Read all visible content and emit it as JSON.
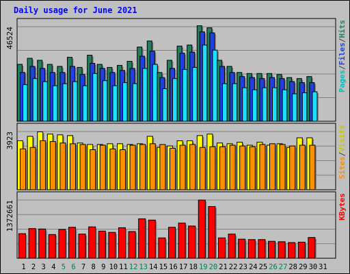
{
  "chart_data": {
    "type": "bar",
    "title": "Daily usage for June 2021",
    "days": [
      "1",
      "2",
      "3",
      "4",
      "5",
      "6",
      "7",
      "8",
      "9",
      "10",
      "11",
      "12",
      "13",
      "14",
      "15",
      "16",
      "17",
      "18",
      "19",
      "20",
      "21",
      "22",
      "23",
      "24",
      "25",
      "26",
      "27",
      "28",
      "29",
      "30",
      "31"
    ],
    "weekend_days": [
      "5",
      "6",
      "12",
      "13",
      "19",
      "20",
      "26",
      "27"
    ],
    "top_panel": {
      "ymax_label": "46524",
      "ymax": 46524,
      "legend": [
        "Pages",
        "/",
        "Files",
        "/",
        "Hits"
      ],
      "series": [
        {
          "name": "Hits",
          "color": "#1f7f5f",
          "values": [
            28000,
            31000,
            30000,
            28000,
            27000,
            31500,
            26500,
            32500,
            28000,
            26500,
            27500,
            29500,
            36500,
            39500,
            24000,
            30000,
            37000,
            37500,
            47000,
            46000,
            30000,
            27000,
            24000,
            23500,
            23500,
            23500,
            23000,
            21500,
            21000,
            22000,
            null
          ]
        },
        {
          "name": "Files",
          "color": "#1f3fdf",
          "values": [
            24000,
            27000,
            26000,
            24000,
            24000,
            27000,
            23000,
            28500,
            26000,
            24000,
            25000,
            26000,
            32000,
            34500,
            21500,
            26000,
            33500,
            34000,
            44000,
            43500,
            27000,
            24000,
            22000,
            21500,
            21000,
            21500,
            21000,
            19500,
            19000,
            19000,
            null
          ]
        },
        {
          "name": "Pages",
          "color": "#1fdfff",
          "values": [
            18000,
            21000,
            19500,
            17500,
            18500,
            19500,
            17500,
            23500,
            20000,
            17500,
            19000,
            18500,
            26000,
            28000,
            16000,
            21000,
            25500,
            26500,
            37500,
            35000,
            18500,
            18500,
            16500,
            15500,
            16500,
            16500,
            15500,
            13500,
            14000,
            14500,
            null
          ]
        }
      ]
    },
    "mid_panel": {
      "ymax_label": "3923",
      "ymax": 3923,
      "legend": [
        "Sites",
        "/",
        "Visits"
      ],
      "series": [
        {
          "name": "Visits",
          "color": "#ffff00",
          "values": [
            3300,
            3600,
            3900,
            3750,
            3700,
            3650,
            3150,
            3050,
            3050,
            3100,
            3100,
            3050,
            3100,
            3600,
            2850,
            2950,
            3300,
            3300,
            3650,
            3750,
            3150,
            3100,
            3200,
            3000,
            3200,
            3000,
            3100,
            2850,
            3500,
            3500,
            null
          ]
        },
        {
          "name": "Sites",
          "color": "#ff8f00",
          "values": [
            2750,
            2850,
            3300,
            3250,
            3150,
            3100,
            3050,
            2700,
            3000,
            2750,
            2700,
            3000,
            3050,
            3100,
            3050,
            2800,
            3000,
            3050,
            2850,
            2900,
            2900,
            3000,
            2950,
            2900,
            3050,
            3100,
            3050,
            2950,
            3000,
            3000,
            null
          ]
        }
      ]
    },
    "bottom_panel": {
      "ymax_label": "1372661",
      "ymax": 1372661,
      "legend": [
        "KBytes"
      ],
      "series": [
        {
          "name": "KBytes",
          "color": "#ff0000",
          "values": [
            580000,
            700000,
            690000,
            560000,
            680000,
            730000,
            570000,
            740000,
            640000,
            610000,
            720000,
            630000,
            930000,
            900000,
            480000,
            730000,
            830000,
            760000,
            1372661,
            1220000,
            480000,
            570000,
            450000,
            440000,
            440000,
            400000,
            390000,
            370000,
            380000,
            490000,
            null
          ]
        }
      ]
    }
  }
}
